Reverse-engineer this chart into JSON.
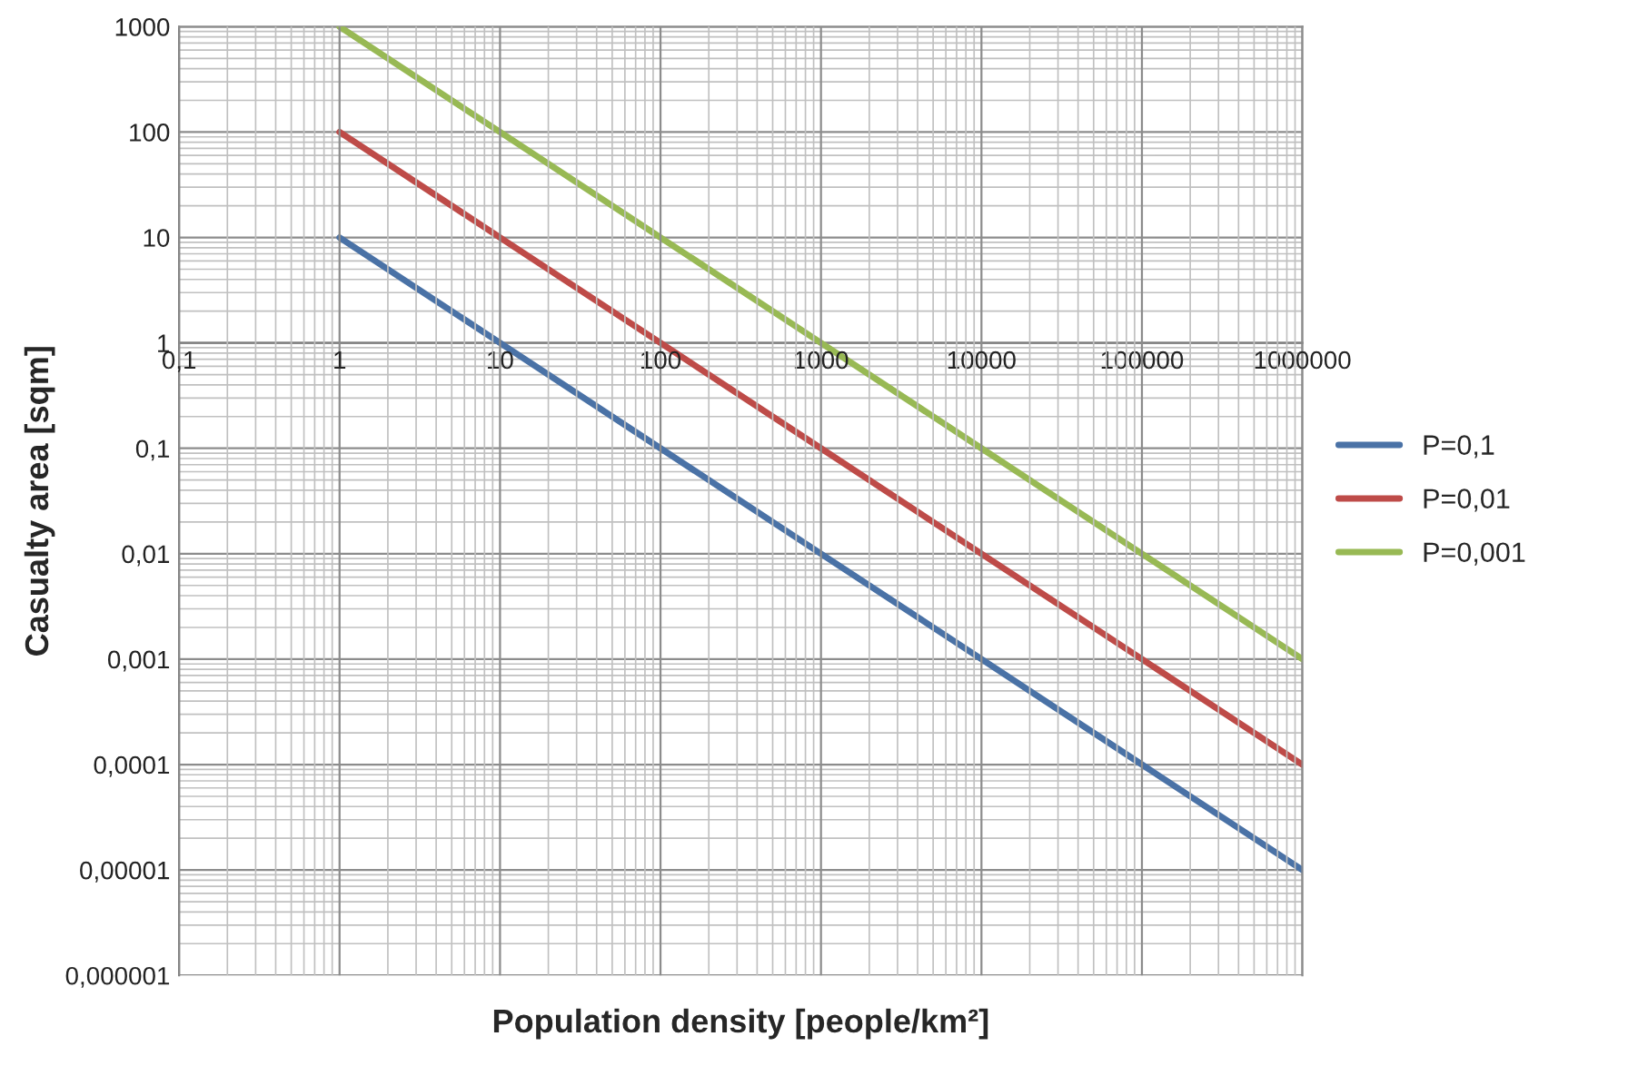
{
  "chart_data": {
    "type": "line",
    "xlabel": "Population density [people/km²]",
    "ylabel": "Casualty area [sqm]",
    "log": "xy",
    "grid": true,
    "legend": "right",
    "line_style": "solid",
    "marker": "none",
    "xlim": [
      0.1,
      1000000
    ],
    "ylim": [
      1e-06,
      1000
    ],
    "xticks": [
      {
        "value": 0.1,
        "label": "0,1"
      },
      1,
      10,
      100,
      1000,
      10000,
      100000,
      1000000
    ],
    "yticks": [
      {
        "value": 1e-06,
        "label": "0,000001"
      },
      {
        "value": 1e-05,
        "label": "0,00001"
      },
      {
        "value": 0.0001,
        "label": "0,0001"
      },
      {
        "value": 0.001,
        "label": "0,001"
      },
      {
        "value": 0.01,
        "label": "0,01"
      },
      {
        "value": 0.1,
        "label": "0,1"
      },
      1,
      10,
      100,
      1000
    ],
    "series": [
      {
        "name": "P=0,1",
        "color": "#4a72a6",
        "x": [
          1,
          10,
          100,
          1000,
          10000,
          100000,
          1000000
        ],
        "values": [
          10,
          1,
          0.1,
          0.01,
          0.001,
          0.0001,
          1e-05
        ]
      },
      {
        "name": "P=0,01",
        "color": "#be4b48",
        "x": [
          1,
          10,
          100,
          1000,
          10000,
          100000,
          1000000
        ],
        "values": [
          100,
          10,
          1,
          0.1,
          0.01,
          0.001,
          0.0001
        ]
      },
      {
        "name": "P=0,001",
        "color": "#98b954",
        "x": [
          1,
          10,
          100,
          1000,
          10000,
          100000,
          1000000
        ],
        "values": [
          1000,
          100,
          10,
          1,
          0.1,
          0.01,
          0.001
        ]
      }
    ]
  }
}
